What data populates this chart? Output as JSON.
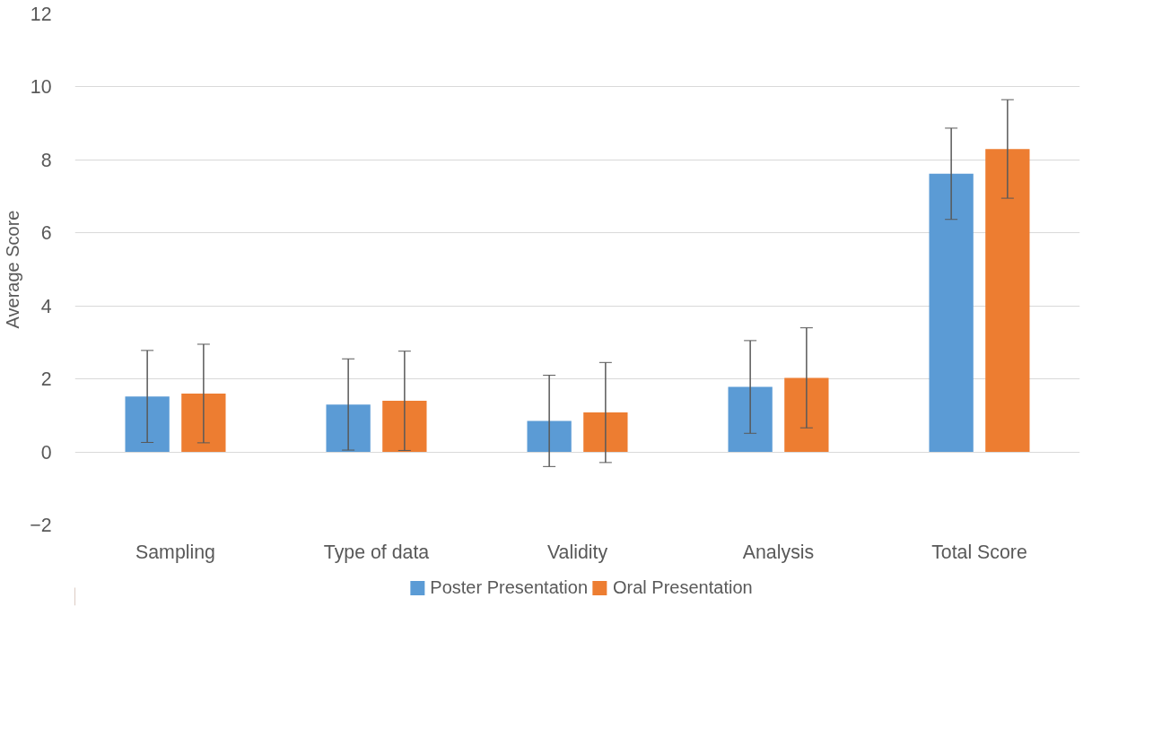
{
  "chart_data": {
    "type": "bar",
    "ylabel": "Average Score",
    "categories": [
      "Sampling",
      "Type of data",
      "Validity",
      "Analysis",
      "Total Score"
    ],
    "series": [
      {
        "name": "Poster Presentation",
        "color": "#5b9bd5",
        "values": [
          1.52,
          1.3,
          0.85,
          1.78,
          7.62
        ],
        "errors": [
          1.26,
          1.25,
          1.25,
          1.27,
          1.25
        ]
      },
      {
        "name": "Oral Presentation",
        "color": "#ed7d31",
        "values": [
          1.6,
          1.4,
          1.08,
          2.03,
          8.3
        ],
        "errors": [
          1.35,
          1.36,
          1.37,
          1.37,
          1.35
        ]
      }
    ],
    "ylim": [
      -2,
      12
    ],
    "yticks": [
      -2,
      0,
      2,
      4,
      6,
      8,
      10,
      12
    ],
    "grid": "y",
    "legend": "bottom"
  }
}
